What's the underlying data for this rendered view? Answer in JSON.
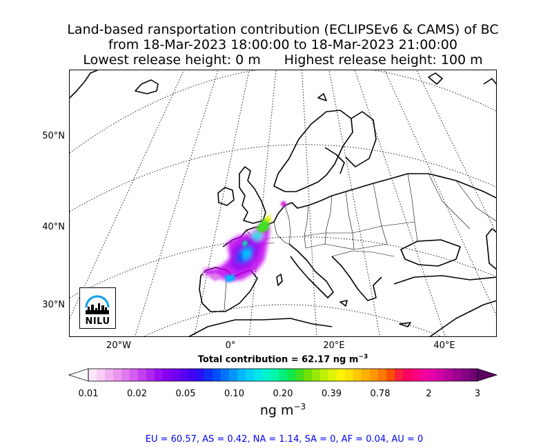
{
  "title": {
    "line1": "Land-based ransportation contribution (ECLIPSEv6 & CAMS) of BC",
    "line2": "from 18-Mar-2023 18:00:00 to 18-Mar-2023 21:00:00",
    "line3_left": "Lowest release height: 0 m",
    "line3_right": "Highest release height: 100 m"
  },
  "map": {
    "lat_labels": [
      "50°N",
      "40°N",
      "30°N"
    ],
    "lon_labels": [
      "20°W",
      "0°",
      "20°E",
      "40°E"
    ],
    "logo_text": "NILU"
  },
  "total_contribution": "Total contribution = 62.17 ng m",
  "total_exponent": "−3",
  "colorbar": {
    "tick_labels": [
      "0.01",
      "0.02",
      "0.05",
      "0.10",
      "0.20",
      "0.39",
      "0.78",
      "2",
      "3"
    ],
    "units": "ng m",
    "units_exponent": "−3",
    "colors": [
      "#fde6fb",
      "#f9cdf6",
      "#f2b1f1",
      "#eb95ee",
      "#e07aee",
      "#d55def",
      "#c340ef",
      "#b026f0",
      "#9a10f2",
      "#8500ee",
      "#7100f0",
      "#5a00f2",
      "#4100f4",
      "#2a10f7",
      "#1030fa",
      "#0050ff",
      "#0074ff",
      "#0096ff",
      "#00b6ff",
      "#00d2f8",
      "#00e8e8",
      "#00f4d0",
      "#00f8a8",
      "#00f080",
      "#10e850",
      "#40e020",
      "#70e000",
      "#98e800",
      "#bef000",
      "#e0f400",
      "#fcf400",
      "#ffe000",
      "#ffc800",
      "#ffb000",
      "#ff9800",
      "#ff7800",
      "#ff5000",
      "#ff2040",
      "#ff0060",
      "#ff0080",
      "#f4009a",
      "#e400a8",
      "#d000a8",
      "#b8009c",
      "#9c0090",
      "#860084",
      "#6e0074"
    ],
    "under_color": "#ffffff",
    "over_color": "#5a0060"
  },
  "region_summary": "EU = 60.57,  AS = 0.42,  NA = 1.14,  SA = 0,  AF = 0.04,  AU = 0"
}
